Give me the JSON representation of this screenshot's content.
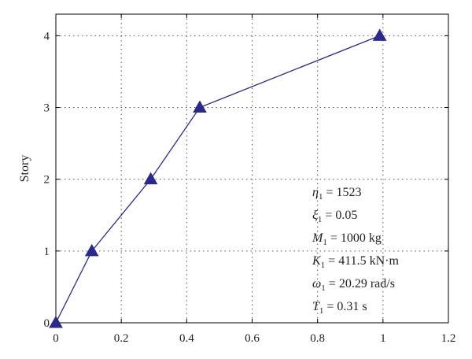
{
  "chart_data": {
    "type": "line",
    "xlabel": "",
    "ylabel": "Story",
    "xlim": [
      0,
      1.2
    ],
    "ylim": [
      0,
      4.3
    ],
    "xticks": [
      "0",
      "0.2",
      "0.4",
      "0.6",
      "0.8",
      "1",
      "1.2"
    ],
    "yticks": [
      "0",
      "1",
      "2",
      "3",
      "4"
    ],
    "grid": true,
    "series": [
      {
        "marker": "triangle",
        "color": "#2b2a8a",
        "x": [
          0,
          0.11,
          0.29,
          0.44,
          0.99
        ],
        "y": [
          0,
          1,
          2,
          3,
          4
        ]
      }
    ],
    "annotations": [
      {
        "symbol": "η",
        "sub": "1",
        "rest": " = 1523"
      },
      {
        "symbol": "ξ",
        "sub": "1",
        "rest": " = 0.05"
      },
      {
        "symbol": "M",
        "sub": "1",
        "rest": " = 1000 kg"
      },
      {
        "symbol": "K",
        "sub": "1",
        "rest": " = 411.5 kN·m"
      },
      {
        "symbol": "ω",
        "sub": "1",
        "rest": " = 20.29 rad/s"
      },
      {
        "symbol": "T",
        "sub": "1",
        "rest": " = 0.31 s"
      }
    ]
  }
}
